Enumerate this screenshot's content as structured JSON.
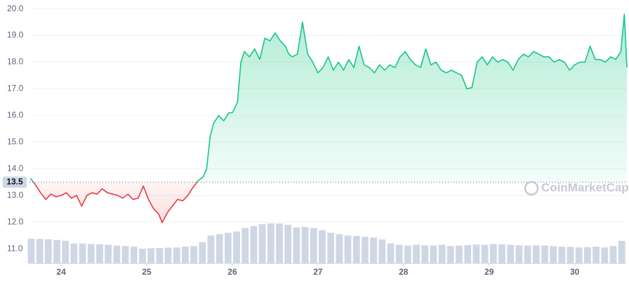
{
  "chart_data": {
    "type": "line",
    "xlim": [
      23.63,
      30.61
    ],
    "ylim": [
      10.45,
      20.2
    ],
    "xticks": [
      24,
      25,
      26,
      27,
      28,
      29,
      30
    ],
    "yticks": [
      {
        "value": 11,
        "label": "11.0"
      },
      {
        "value": 12,
        "label": "12.0"
      },
      {
        "value": 13,
        "label": "13.0"
      },
      {
        "value": 14,
        "label": "14.0"
      },
      {
        "value": 15,
        "label": "15.0"
      },
      {
        "value": 16,
        "label": "16.0"
      },
      {
        "value": 17,
        "label": "17.0"
      },
      {
        "value": 18,
        "label": "18.0"
      },
      {
        "value": 19,
        "label": "19.0"
      },
      {
        "value": 20,
        "label": "20.0"
      }
    ],
    "grid": true,
    "baseline": 13.5,
    "watermark": "CoinMarketCap",
    "colors": {
      "up": "#16c784",
      "down": "#ea3943",
      "volume": "#cfd6e4"
    },
    "x": [
      23.64,
      23.7,
      23.76,
      23.82,
      23.88,
      23.94,
      24.0,
      24.06,
      24.12,
      24.18,
      24.24,
      24.3,
      24.36,
      24.42,
      24.48,
      24.54,
      24.6,
      24.66,
      24.72,
      24.78,
      24.84,
      24.9,
      24.96,
      25.02,
      25.08,
      25.14,
      25.18,
      25.24,
      25.3,
      25.36,
      25.42,
      25.48,
      25.54,
      25.6,
      25.66,
      25.7,
      25.74,
      25.78,
      25.84,
      25.9,
      25.96,
      26.0,
      26.06,
      26.1,
      26.14,
      26.2,
      26.26,
      26.32,
      26.38,
      26.44,
      26.5,
      26.56,
      26.62,
      26.66,
      26.7,
      26.76,
      26.82,
      26.88,
      26.94,
      27.0,
      27.06,
      27.12,
      27.18,
      27.24,
      27.3,
      27.36,
      27.42,
      27.48,
      27.54,
      27.6,
      27.66,
      27.72,
      27.78,
      27.84,
      27.9,
      27.96,
      28.02,
      28.08,
      28.14,
      28.2,
      28.26,
      28.32,
      28.38,
      28.44,
      28.5,
      28.56,
      28.62,
      28.68,
      28.74,
      28.8,
      28.86,
      28.92,
      28.98,
      29.04,
      29.1,
      29.16,
      29.22,
      29.28,
      29.34,
      29.4,
      29.46,
      29.52,
      29.58,
      29.64,
      29.7,
      29.76,
      29.82,
      29.88,
      29.94,
      30.0,
      30.06,
      30.12,
      30.18,
      30.24,
      30.3,
      30.36,
      30.42,
      30.48,
      30.54,
      30.58,
      30.61
    ],
    "values": [
      13.65,
      13.4,
      13.1,
      12.85,
      13.05,
      12.95,
      13.0,
      13.1,
      12.9,
      13.0,
      12.6,
      13.0,
      13.1,
      13.05,
      13.25,
      13.1,
      13.05,
      13.0,
      12.9,
      13.05,
      12.85,
      12.9,
      13.35,
      12.85,
      12.5,
      12.3,
      11.98,
      12.35,
      12.6,
      12.85,
      12.8,
      13.0,
      13.3,
      13.55,
      13.7,
      14.0,
      15.2,
      15.7,
      16.0,
      15.8,
      16.1,
      16.1,
      16.5,
      18.0,
      18.4,
      18.2,
      18.5,
      18.1,
      18.9,
      18.8,
      19.1,
      18.8,
      18.6,
      18.3,
      18.2,
      18.3,
      19.5,
      18.3,
      18.0,
      17.6,
      17.8,
      18.2,
      17.7,
      18.0,
      17.7,
      18.1,
      17.8,
      18.6,
      17.9,
      17.8,
      17.6,
      17.9,
      17.7,
      17.9,
      17.8,
      18.2,
      18.4,
      18.1,
      17.9,
      17.8,
      18.5,
      17.9,
      18.0,
      17.7,
      17.6,
      17.7,
      17.6,
      17.5,
      17.0,
      17.05,
      18.0,
      18.2,
      17.9,
      18.2,
      18.0,
      18.1,
      18.0,
      17.7,
      18.1,
      18.3,
      18.2,
      18.4,
      18.3,
      18.2,
      18.2,
      18.0,
      18.1,
      18.0,
      17.7,
      17.9,
      18.0,
      18.0,
      18.6,
      18.1,
      18.1,
      18.0,
      18.2,
      18.1,
      18.4,
      19.8,
      17.8
    ],
    "volume": {
      "x": [
        23.65,
        23.75,
        23.85,
        23.95,
        24.05,
        24.15,
        24.25,
        24.35,
        24.45,
        24.55,
        24.65,
        24.75,
        24.85,
        24.95,
        25.05,
        25.15,
        25.25,
        25.35,
        25.45,
        25.55,
        25.65,
        25.75,
        25.85,
        25.95,
        26.05,
        26.15,
        26.25,
        26.35,
        26.45,
        26.55,
        26.65,
        26.75,
        26.85,
        26.95,
        27.05,
        27.15,
        27.25,
        27.35,
        27.45,
        27.55,
        27.65,
        27.75,
        27.85,
        27.95,
        28.05,
        28.15,
        28.25,
        28.35,
        28.45,
        28.55,
        28.65,
        28.75,
        28.85,
        28.95,
        29.05,
        29.15,
        29.25,
        29.35,
        29.45,
        29.55,
        29.65,
        29.75,
        29.85,
        29.95,
        30.05,
        30.15,
        30.25,
        30.35,
        30.45,
        30.55
      ],
      "values": [
        11.38,
        11.37,
        11.36,
        11.33,
        11.3,
        11.2,
        11.2,
        11.18,
        11.17,
        11.15,
        11.12,
        11.1,
        11.08,
        11.0,
        11.02,
        11.03,
        11.04,
        11.05,
        11.08,
        11.1,
        11.25,
        11.5,
        11.55,
        11.6,
        11.65,
        11.78,
        11.85,
        11.92,
        11.95,
        11.95,
        11.9,
        11.8,
        11.82,
        11.78,
        11.7,
        11.6,
        11.55,
        11.5,
        11.48,
        11.45,
        11.42,
        11.35,
        11.2,
        11.15,
        11.12,
        11.15,
        11.13,
        11.12,
        11.15,
        11.1,
        11.12,
        11.14,
        11.16,
        11.15,
        11.18,
        11.17,
        11.15,
        11.13,
        11.12,
        11.13,
        11.12,
        11.1,
        11.08,
        11.07,
        11.05,
        11.06,
        11.08,
        11.05,
        11.1,
        11.3
      ]
    }
  }
}
